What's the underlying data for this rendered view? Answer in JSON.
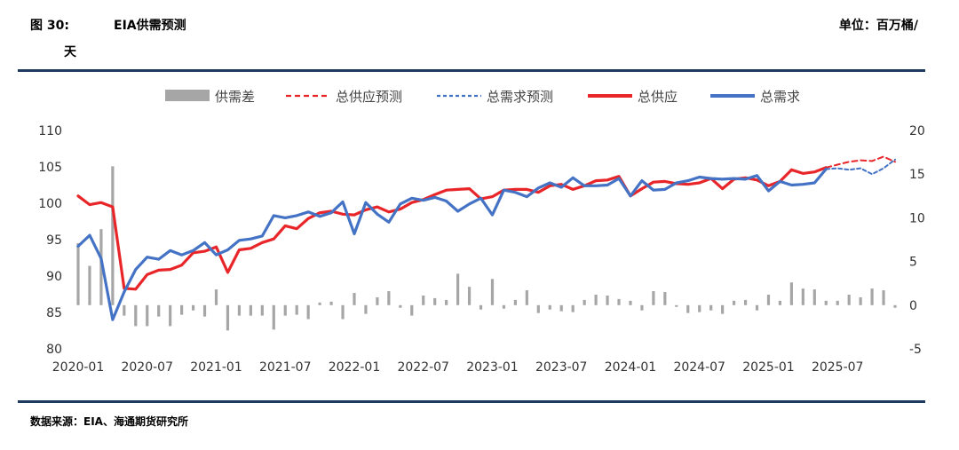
{
  "header": {
    "figure_no": "图 30:",
    "title": "EIA供需预测",
    "unit": "单位：百万桶/",
    "unit_cont": "天"
  },
  "footer": {
    "source": "数据来源：EIA、海通期货研究所"
  },
  "colors": {
    "rule": "#1f3a5f",
    "supply": "#e8262a",
    "demand": "#4472c4",
    "gap": "#a6a6a6"
  },
  "chart_data": {
    "type": "line",
    "x_tick_labels": [
      "2020-01",
      "2020-07",
      "2021-01",
      "2021-07",
      "2022-01",
      "2022-07",
      "2023-01",
      "2023-07",
      "2024-01",
      "2024-07",
      "2025-01",
      "2025-07"
    ],
    "left_axis": {
      "range": [
        80,
        110
      ],
      "ticks": [
        80,
        85,
        90,
        95,
        100,
        105,
        110
      ]
    },
    "right_axis": {
      "range": [
        -5,
        20
      ],
      "ticks": [
        -5,
        0,
        5,
        10,
        15,
        20
      ]
    },
    "legend_position": "top",
    "grid": false,
    "series": [
      {
        "name": "供需差",
        "kind": "bar",
        "axis": "right",
        "x": [
          "2020-01",
          "2020-02",
          "2020-03",
          "2020-04",
          "2020-05",
          "2020-06",
          "2020-07",
          "2020-08",
          "2020-09",
          "2020-10",
          "2020-11",
          "2020-12",
          "2021-01",
          "2021-02",
          "2021-03",
          "2021-04",
          "2021-05",
          "2021-06",
          "2021-07",
          "2021-08",
          "2021-09",
          "2021-10",
          "2021-11",
          "2021-12",
          "2022-01",
          "2022-02",
          "2022-03",
          "2022-04",
          "2022-05",
          "2022-06",
          "2022-07",
          "2022-08",
          "2022-09",
          "2022-10",
          "2022-11",
          "2022-12",
          "2023-01",
          "2023-02",
          "2023-03",
          "2023-04",
          "2023-05",
          "2023-06",
          "2023-07",
          "2023-08",
          "2023-09",
          "2023-10",
          "2023-11",
          "2023-12",
          "2024-01",
          "2024-02",
          "2024-03",
          "2024-04",
          "2024-05",
          "2024-06",
          "2024-07",
          "2024-08",
          "2024-09",
          "2024-10",
          "2024-11",
          "2024-12",
          "2025-01",
          "2025-02",
          "2025-03",
          "2025-04",
          "2025-05",
          "2025-06",
          "2025-07",
          "2025-08",
          "2025-09",
          "2025-10",
          "2025-11",
          "2025-12"
        ],
        "values": [
          7.1,
          4.5,
          8.7,
          15.9,
          -1.2,
          -2.4,
          -2.4,
          -1.3,
          -2.4,
          -1.1,
          -0.6,
          -1.3,
          1.8,
          -2.9,
          -1.2,
          -1.2,
          -1.2,
          -2.8,
          -1.2,
          -1.1,
          -1.6,
          0.3,
          0.4,
          -1.6,
          1.4,
          -1.0,
          0.9,
          1.6,
          -0.3,
          -1.2,
          1.1,
          0.8,
          0.6,
          3.6,
          2.1,
          -0.5,
          3.0,
          -0.4,
          0.6,
          1.7,
          -0.9,
          -0.5,
          -0.7,
          -0.8,
          0.6,
          1.2,
          1.1,
          0.7,
          0.5,
          -0.6,
          1.6,
          1.5,
          -0.2,
          -0.9,
          -0.8,
          -0.6,
          -1.0,
          0.5,
          0.6,
          -0.6,
          1.2,
          0.5,
          2.6,
          1.9,
          1.8,
          0.5,
          0.5,
          1.2,
          0.9,
          1.9,
          1.7,
          -0.3
        ]
      },
      {
        "name": "总供应预测",
        "kind": "line",
        "style": "dashed",
        "axis": "left",
        "x": [
          "2025-06",
          "2025-07",
          "2025-08",
          "2025-09",
          "2025-10",
          "2025-11",
          "2025-12"
        ],
        "values": [
          104.9,
          105.3,
          105.7,
          105.9,
          105.8,
          106.4,
          105.7
        ]
      },
      {
        "name": "总需求预测",
        "kind": "line",
        "style": "dashed",
        "axis": "left",
        "x": [
          "2025-06",
          "2025-07",
          "2025-08",
          "2025-09",
          "2025-10",
          "2025-11",
          "2025-12"
        ],
        "values": [
          104.7,
          104.8,
          104.6,
          104.8,
          104.0,
          104.8,
          106.0
        ]
      },
      {
        "name": "总供应",
        "kind": "line",
        "style": "solid",
        "axis": "left",
        "x": [
          "2020-01",
          "2020-02",
          "2020-03",
          "2020-04",
          "2020-05",
          "2020-06",
          "2020-07",
          "2020-08",
          "2020-09",
          "2020-10",
          "2020-11",
          "2020-12",
          "2021-01",
          "2021-02",
          "2021-03",
          "2021-04",
          "2021-05",
          "2021-06",
          "2021-07",
          "2021-08",
          "2021-09",
          "2021-10",
          "2021-11",
          "2021-12",
          "2022-01",
          "2022-02",
          "2022-03",
          "2022-04",
          "2022-05",
          "2022-06",
          "2022-07",
          "2022-08",
          "2022-09",
          "2022-10",
          "2022-11",
          "2022-12",
          "2023-01",
          "2023-02",
          "2023-03",
          "2023-04",
          "2023-05",
          "2023-06",
          "2023-07",
          "2023-08",
          "2023-09",
          "2023-10",
          "2023-11",
          "2023-12",
          "2024-01",
          "2024-02",
          "2024-03",
          "2024-04",
          "2024-05",
          "2024-06",
          "2024-07",
          "2024-08",
          "2024-09",
          "2024-10",
          "2024-11",
          "2024-12",
          "2025-01",
          "2025-02",
          "2025-03",
          "2025-04",
          "2025-05",
          "2025-06"
        ],
        "values": [
          101.0,
          99.8,
          100.1,
          99.5,
          88.3,
          88.2,
          90.2,
          90.8,
          90.9,
          91.5,
          93.2,
          93.4,
          94.0,
          90.5,
          93.6,
          93.8,
          94.6,
          95.1,
          96.9,
          96.5,
          97.9,
          98.7,
          98.9,
          98.5,
          98.4,
          99.1,
          99.5,
          98.8,
          99.2,
          100.1,
          100.5,
          101.2,
          101.8,
          101.9,
          102.0,
          100.6,
          100.9,
          101.8,
          101.9,
          101.9,
          101.5,
          102.4,
          102.6,
          101.9,
          102.4,
          103.1,
          103.2,
          103.7,
          101.0,
          102.0,
          102.9,
          103.0,
          102.7,
          102.6,
          102.8,
          103.4,
          102.0,
          103.3,
          103.5,
          103.2,
          102.4,
          103.0,
          104.6,
          104.1,
          104.3,
          104.9
        ]
      },
      {
        "name": "总需求",
        "kind": "line",
        "style": "solid",
        "axis": "left",
        "x": [
          "2020-01",
          "2020-02",
          "2020-03",
          "2020-04",
          "2020-05",
          "2020-06",
          "2020-07",
          "2020-08",
          "2020-09",
          "2020-10",
          "2020-11",
          "2020-12",
          "2021-01",
          "2021-02",
          "2021-03",
          "2021-04",
          "2021-05",
          "2021-06",
          "2021-07",
          "2021-08",
          "2021-09",
          "2021-10",
          "2021-11",
          "2021-12",
          "2022-01",
          "2022-02",
          "2022-03",
          "2022-04",
          "2022-05",
          "2022-06",
          "2022-07",
          "2022-08",
          "2022-09",
          "2022-10",
          "2022-11",
          "2022-12",
          "2023-01",
          "2023-02",
          "2023-03",
          "2023-04",
          "2023-05",
          "2023-06",
          "2023-07",
          "2023-08",
          "2023-09",
          "2023-10",
          "2023-11",
          "2023-12",
          "2024-01",
          "2024-02",
          "2024-03",
          "2024-04",
          "2024-05",
          "2024-06",
          "2024-07",
          "2024-08",
          "2024-09",
          "2024-10",
          "2024-11",
          "2024-12",
          "2025-01",
          "2025-02",
          "2025-03",
          "2025-04",
          "2025-05",
          "2025-06"
        ],
        "values": [
          94.1,
          95.6,
          92.4,
          84.0,
          87.8,
          90.9,
          92.6,
          92.3,
          93.5,
          92.9,
          93.5,
          94.6,
          92.9,
          93.6,
          94.9,
          95.1,
          95.5,
          98.3,
          98.0,
          98.3,
          98.8,
          98.2,
          98.7,
          100.2,
          95.8,
          100.1,
          98.5,
          97.4,
          99.9,
          100.7,
          100.4,
          100.8,
          100.3,
          98.9,
          99.9,
          100.7,
          98.4,
          101.8,
          101.5,
          100.9,
          102.1,
          102.8,
          102.2,
          103.5,
          102.4,
          102.4,
          102.5,
          103.4,
          101.0,
          103.1,
          101.8,
          101.9,
          102.8,
          103.1,
          103.6,
          103.4,
          103.3,
          103.4,
          103.3,
          103.8,
          101.7,
          103.0,
          102.5,
          102.6,
          102.8,
          104.7
        ]
      }
    ]
  }
}
